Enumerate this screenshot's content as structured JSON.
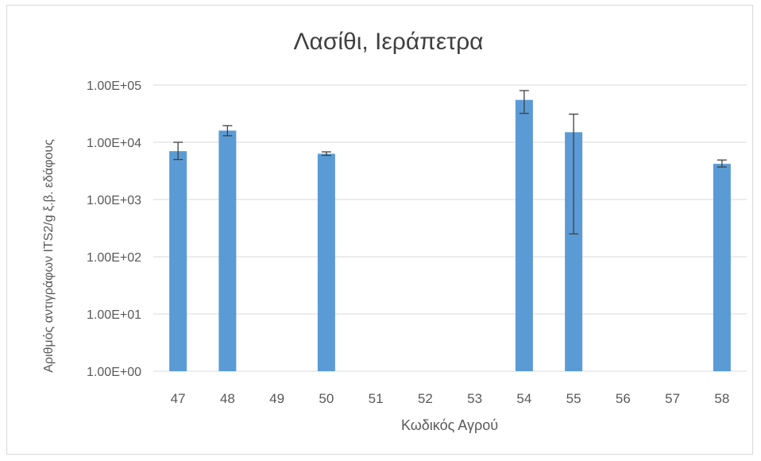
{
  "chart_data": {
    "type": "bar",
    "title": "Λασίθι, Ιεράπετρα",
    "xlabel": "Κωδικός Αγρού",
    "ylabel": "Αριθμός αντιγράφων ITS2/g ξ.β. εδάφους",
    "yscale": "log",
    "ylim": [
      1,
      100000
    ],
    "yticks": [
      1,
      10,
      100,
      1000,
      10000,
      100000
    ],
    "ytick_labels": [
      "1.00E+00",
      "1.00E+01",
      "1.00E+02",
      "1.00E+03",
      "1.00E+04",
      "1.00E+05"
    ],
    "categories": [
      "47",
      "48",
      "49",
      "50",
      "51",
      "52",
      "53",
      "54",
      "55",
      "56",
      "57",
      "58"
    ],
    "values": [
      7000,
      16000,
      null,
      6300,
      null,
      null,
      null,
      55000,
      15000,
      null,
      null,
      4200
    ],
    "error_low": [
      5000,
      13000,
      null,
      5900,
      null,
      null,
      null,
      32000,
      250,
      null,
      null,
      3700
    ],
    "error_high": [
      10000,
      19500,
      null,
      6800,
      null,
      null,
      null,
      80000,
      31000,
      null,
      null,
      4900
    ],
    "grid": true,
    "bar_color": "#5b9bd5",
    "gridline_color": "#d9d9d9"
  }
}
